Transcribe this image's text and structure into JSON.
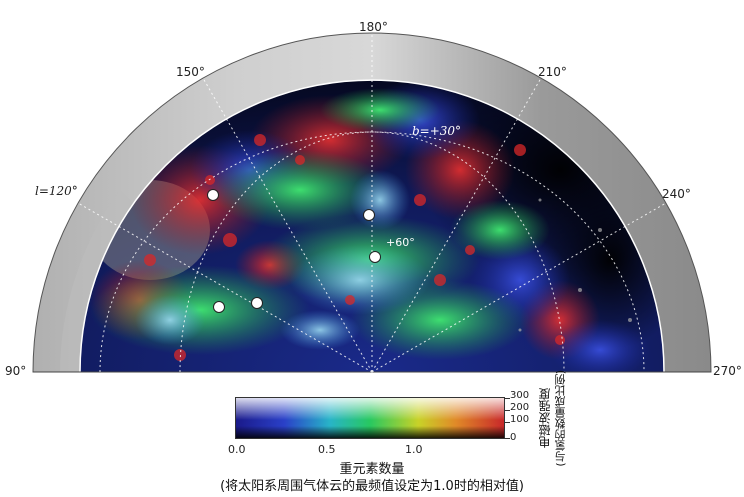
{
  "image": {
    "longitude_labels": {
      "l90": "90°",
      "l120": "l=120°",
      "l150": "150°",
      "l180": "180°",
      "l210": "210°",
      "l240": "240°",
      "l270": "270°"
    },
    "latitude_labels": {
      "b30": "b=+30°",
      "b60": "+60°"
    },
    "colorbar": {
      "ticks": [
        "0.0",
        "0.5",
        "1.0"
      ],
      "right_ticks": [
        "300",
        "200",
        "100",
        "0"
      ],
      "right_label_1": "电磁波强度",
      "right_label_2": "(与氢的数量成比例)",
      "x_label_1": "重元素数量",
      "x_label_2": "(将太阳系周围气体云的最频值设定为1.0时的相对值)"
    },
    "markers_count": 5
  }
}
